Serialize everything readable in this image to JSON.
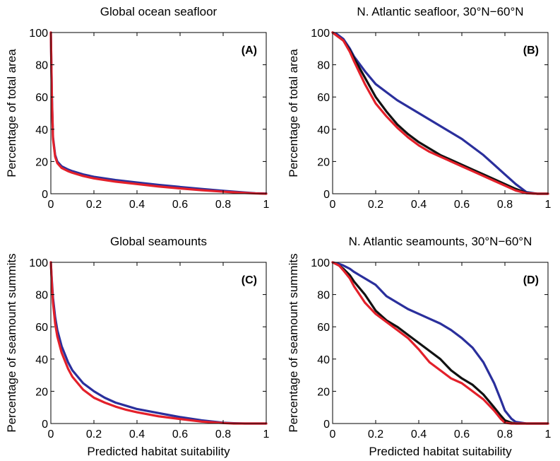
{
  "xlabel": "Predicted habitat suitability",
  "colors": {
    "blue": "#2a2f9c",
    "red": "#e3202a",
    "black": "#111111"
  },
  "chart_data": [
    {
      "type": "line",
      "panel": "(A)",
      "title": "Global ocean seafloor",
      "xlabel": "",
      "ylabel": "Percentage of total area",
      "xlim": [
        0,
        1
      ],
      "ylim": [
        0,
        100
      ],
      "xticks": [
        "0",
        "0.2",
        "0.4",
        "0.6",
        "0.8",
        "1"
      ],
      "yticks": [
        "0",
        "20",
        "40",
        "60",
        "80",
        "100"
      ],
      "x": [
        0,
        0.005,
        0.01,
        0.02,
        0.03,
        0.05,
        0.08,
        0.1,
        0.15,
        0.2,
        0.3,
        0.4,
        0.5,
        0.6,
        0.7,
        0.8,
        0.9,
        0.95,
        1.0
      ],
      "series": [
        {
          "color": "blue",
          "values": [
            100,
            60,
            35,
            24,
            20,
            17,
            15,
            14,
            12,
            10.5,
            8.5,
            7,
            5.5,
            4.2,
            3,
            1.8,
            0.8,
            0.3,
            0.1
          ]
        },
        {
          "color": "red",
          "values": [
            100,
            58,
            34,
            23,
            19,
            16,
            14,
            13,
            11,
            9.5,
            7.5,
            6,
            4.5,
            3.3,
            2.2,
            1.3,
            0.5,
            0.2,
            0
          ]
        }
      ]
    },
    {
      "type": "line",
      "panel": "(B)",
      "title": "N. Atlantic seafloor, 30°N−60°N",
      "xlabel": "",
      "ylabel": "Percentage of total area",
      "xlim": [
        0,
        1
      ],
      "ylim": [
        0,
        100
      ],
      "xticks": [
        "0",
        "0.2",
        "0.4",
        "0.6",
        "0.8",
        "1"
      ],
      "yticks": [
        "0",
        "20",
        "40",
        "60",
        "80",
        "100"
      ],
      "x": [
        0,
        0.02,
        0.05,
        0.08,
        0.1,
        0.15,
        0.2,
        0.25,
        0.3,
        0.35,
        0.4,
        0.45,
        0.5,
        0.55,
        0.6,
        0.65,
        0.7,
        0.75,
        0.8,
        0.85,
        0.9,
        0.95,
        1.0
      ],
      "series": [
        {
          "color": "blue",
          "values": [
            100,
            99,
            96,
            90,
            85,
            76,
            68,
            63,
            58,
            54,
            50,
            46,
            42,
            38,
            34,
            29,
            24,
            18,
            12,
            6,
            1,
            0,
            0
          ]
        },
        {
          "color": "black",
          "values": [
            100,
            98,
            95,
            89,
            84,
            72,
            60,
            51,
            43,
            37,
            32,
            28,
            24,
            21,
            18,
            15,
            12,
            9,
            6,
            3,
            0.5,
            0,
            0
          ]
        },
        {
          "color": "red",
          "values": [
            100,
            98,
            95,
            88,
            82,
            68,
            56,
            48,
            41,
            35,
            30,
            26,
            23,
            20,
            17,
            14,
            11,
            8,
            5,
            2,
            0.3,
            0,
            0
          ]
        }
      ]
    },
    {
      "type": "line",
      "panel": "(C)",
      "title": "Global seamounts",
      "xlabel": "Predicted habitat suitability",
      "ylabel": "Percentage of seamount summits",
      "xlim": [
        0,
        1
      ],
      "ylim": [
        0,
        100
      ],
      "xticks": [
        "0",
        "0.2",
        "0.4",
        "0.6",
        "0.8",
        "1"
      ],
      "yticks": [
        "0",
        "20",
        "40",
        "60",
        "80",
        "100"
      ],
      "x": [
        0,
        0.005,
        0.01,
        0.02,
        0.03,
        0.05,
        0.08,
        0.1,
        0.15,
        0.2,
        0.25,
        0.3,
        0.35,
        0.4,
        0.5,
        0.6,
        0.7,
        0.8,
        0.85,
        0.9,
        1.0
      ],
      "series": [
        {
          "color": "blue",
          "values": [
            100,
            88,
            78,
            66,
            58,
            48,
            38,
            33,
            25,
            20,
            16,
            13,
            11,
            9,
            6.5,
            4,
            2,
            0.5,
            0.2,
            0,
            0
          ]
        },
        {
          "color": "red",
          "values": [
            100,
            86,
            75,
            62,
            54,
            44,
            34,
            29,
            21,
            16,
            13,
            10.5,
            8.5,
            7,
            4.5,
            2.8,
            1.2,
            0.3,
            0,
            0,
            0
          ]
        }
      ]
    },
    {
      "type": "line",
      "panel": "(D)",
      "title": "N. Atlantic seamounts, 30°N−60°N",
      "xlabel": "Predicted habitat suitability",
      "ylabel": "Percentage of seamount summits",
      "xlim": [
        0,
        1
      ],
      "ylim": [
        0,
        100
      ],
      "xticks": [
        "0",
        "0.2",
        "0.4",
        "0.6",
        "0.8",
        "1"
      ],
      "yticks": [
        "0",
        "20",
        "40",
        "60",
        "80",
        "100"
      ],
      "x": [
        0,
        0.03,
        0.05,
        0.08,
        0.1,
        0.15,
        0.2,
        0.25,
        0.3,
        0.35,
        0.4,
        0.45,
        0.5,
        0.55,
        0.6,
        0.65,
        0.7,
        0.75,
        0.78,
        0.8,
        0.83,
        0.85,
        0.9,
        1.0
      ],
      "series": [
        {
          "color": "blue",
          "values": [
            100,
            99,
            98,
            96,
            94,
            90,
            86,
            79,
            75,
            71,
            68,
            65,
            62,
            58,
            53,
            47,
            38,
            25,
            15,
            8,
            3,
            1,
            0,
            0
          ]
        },
        {
          "color": "black",
          "values": [
            100,
            98,
            96,
            92,
            88,
            80,
            70,
            64,
            60,
            55,
            50,
            45,
            40,
            33,
            28,
            24,
            18,
            10,
            5,
            2,
            0.5,
            0,
            0,
            0
          ]
        },
        {
          "color": "red",
          "values": [
            100,
            98,
            95,
            90,
            85,
            75,
            68,
            63,
            58,
            53,
            46,
            38,
            33,
            28,
            25,
            20,
            15,
            8,
            3,
            0.5,
            0,
            0,
            0,
            0
          ]
        }
      ]
    }
  ]
}
